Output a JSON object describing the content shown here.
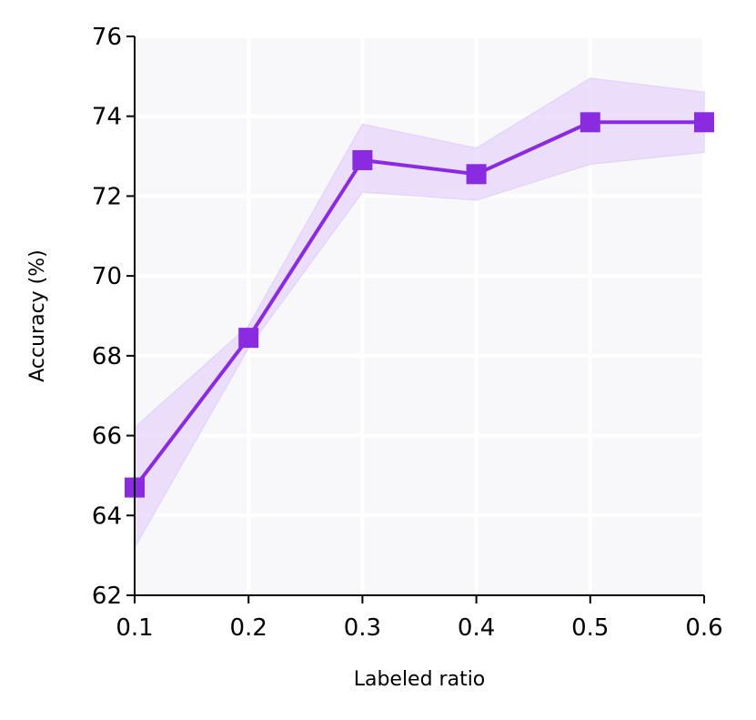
{
  "chart_data": {
    "type": "line",
    "title": "",
    "xlabel": "Labeled ratio",
    "ylabel": "Accuracy (%)",
    "x": [
      0.1,
      0.2,
      0.3,
      0.4,
      0.5,
      0.6
    ],
    "xticks": [
      "0.1",
      "0.2",
      "0.3",
      "0.4",
      "0.5",
      "0.6"
    ],
    "yticks": [
      "62",
      "64",
      "66",
      "68",
      "70",
      "72",
      "74",
      "76"
    ],
    "xlim": [
      0.1,
      0.6
    ],
    "ylim": [
      62,
      76
    ],
    "grid": true,
    "series": [
      {
        "values": [
          64.7,
          68.45,
          72.9,
          72.55,
          73.85,
          73.85
        ],
        "lower": [
          63.2,
          68.2,
          72.1,
          71.9,
          72.8,
          73.1
        ],
        "upper": [
          66.2,
          68.75,
          73.8,
          73.2,
          74.95,
          74.6
        ],
        "color": "#8a2be2",
        "band_color": "#e6d5fb",
        "marker": "square"
      }
    ],
    "background_color": "#f8f8fa",
    "grid_color": "#ffffff"
  }
}
